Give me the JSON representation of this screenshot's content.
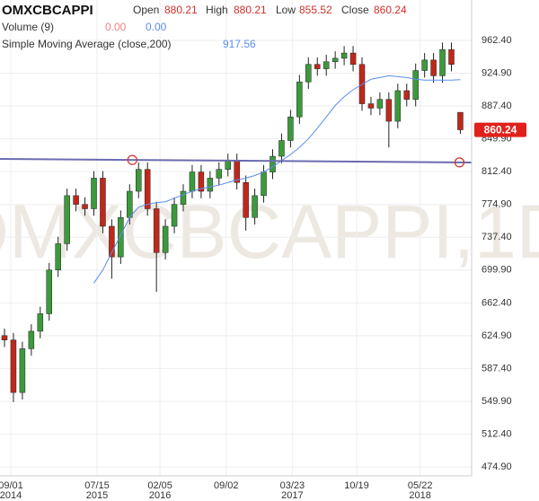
{
  "chart_data": {
    "type": "candlestick",
    "title": "OMXCBCAPPI",
    "watermark": "OMXCBCAPPI,1D",
    "header": {
      "open_label": "Open",
      "open": 880.21,
      "high_label": "High",
      "high": 880.21,
      "low_label": "Low",
      "low": 855.52,
      "close_label": "Close",
      "close": 860.24,
      "volume_label": "Volume (9)",
      "volume_values": [
        {
          "value": 0,
          "label": "0.00"
        },
        {
          "value": 0,
          "label": "0.00"
        }
      ],
      "sma_label": "Simple Moving Average (close,200)",
      "sma_value": 917.56
    },
    "up_color": "#3c9a3c",
    "down_color": "#c0281c",
    "sma_color": "#5b8def",
    "trend_color": "#6b6bb0",
    "open": [
      625,
      620,
      560,
      610,
      630,
      650,
      700,
      730,
      785,
      775,
      770,
      805,
      750,
      715,
      760,
      790,
      815,
      770,
      720,
      750,
      775,
      790,
      812,
      790,
      805,
      815,
      825,
      800,
      760,
      785,
      812,
      830,
      848,
      875,
      915,
      935,
      930,
      938,
      942,
      948,
      935,
      890,
      885,
      895,
      870,
      905,
      895,
      928,
      940,
      922,
      952,
      880.21
    ],
    "high": [
      633,
      628,
      618,
      638,
      658,
      708,
      738,
      793,
      793,
      783,
      813,
      813,
      758,
      768,
      798,
      823,
      823,
      778,
      758,
      783,
      798,
      820,
      820,
      813,
      823,
      833,
      833,
      808,
      793,
      820,
      838,
      856,
      883,
      923,
      943,
      943,
      946,
      950,
      956,
      956,
      943,
      898,
      903,
      903,
      913,
      913,
      936,
      948,
      948,
      960,
      960,
      880.21
    ],
    "low": [
      612,
      549,
      552,
      602,
      622,
      642,
      692,
      722,
      767,
      762,
      762,
      742,
      690,
      707,
      752,
      782,
      762,
      675,
      712,
      742,
      767,
      782,
      782,
      782,
      797,
      807,
      792,
      745,
      752,
      777,
      804,
      822,
      840,
      867,
      907,
      922,
      922,
      930,
      934,
      927,
      882,
      877,
      877,
      840,
      862,
      887,
      887,
      920,
      914,
      914,
      927,
      855.52
    ],
    "close": [
      620,
      560,
      610,
      630,
      650,
      700,
      730,
      785,
      775,
      770,
      805,
      750,
      715,
      760,
      790,
      815,
      770,
      720,
      750,
      775,
      790,
      812,
      790,
      805,
      815,
      825,
      800,
      760,
      785,
      812,
      830,
      848,
      875,
      915,
      935,
      930,
      938,
      942,
      948,
      935,
      890,
      885,
      895,
      870,
      905,
      895,
      928,
      940,
      922,
      952,
      935,
      860.24
    ],
    "sma": [
      null,
      null,
      null,
      null,
      null,
      null,
      null,
      null,
      null,
      null,
      685,
      700,
      720,
      740,
      760,
      772,
      775,
      777,
      778,
      782,
      786,
      790,
      793,
      795,
      797,
      800,
      803,
      805,
      808,
      812,
      818,
      825,
      832,
      840,
      850,
      862,
      875,
      888,
      898,
      906,
      912,
      918,
      920,
      922,
      921,
      920,
      918,
      917,
      917,
      917,
      917,
      917.56
    ],
    "trendline": {
      "x": [
        14.3,
        50.9
      ],
      "values": [
        825.8,
        823.0
      ]
    },
    "last_price": {
      "value": 860.24,
      "label": "860.24"
    },
    "ylim": [
      464.7,
      1008.6
    ],
    "yticks": [
      {
        "value": 474.9,
        "label": "474.90"
      },
      {
        "value": 512.4,
        "label": "512.40"
      },
      {
        "value": 549.9,
        "label": "549.90"
      },
      {
        "value": 587.4,
        "label": "587.40"
      },
      {
        "value": 624.9,
        "label": "624.90"
      },
      {
        "value": 662.4,
        "label": "662.40"
      },
      {
        "value": 699.9,
        "label": "699.90"
      },
      {
        "value": 737.4,
        "label": "737.40"
      },
      {
        "value": 774.9,
        "label": "774.90"
      },
      {
        "value": 812.4,
        "label": "812.40"
      },
      {
        "value": 849.9,
        "label": "849.90"
      },
      {
        "value": 887.4,
        "label": "887.40"
      },
      {
        "value": 924.9,
        "label": "924.90"
      },
      {
        "value": 962.4,
        "label": "962.40"
      }
    ],
    "xticks": [
      {
        "value": 0.7,
        "label": "09/01"
      },
      {
        "value": 10.35,
        "label": "07/15"
      },
      {
        "value": 17.4,
        "label": "02/05"
      },
      {
        "value": 24.8,
        "label": "09/02"
      },
      {
        "value": 32.2,
        "label": "03/23"
      },
      {
        "value": 39.4,
        "label": "10/19"
      },
      {
        "value": 46.5,
        "label": "05/22"
      }
    ],
    "xtick_years": [
      "2014",
      "2015",
      "2016",
      null,
      "2017",
      null,
      "2018"
    ],
    "grid": true
  }
}
